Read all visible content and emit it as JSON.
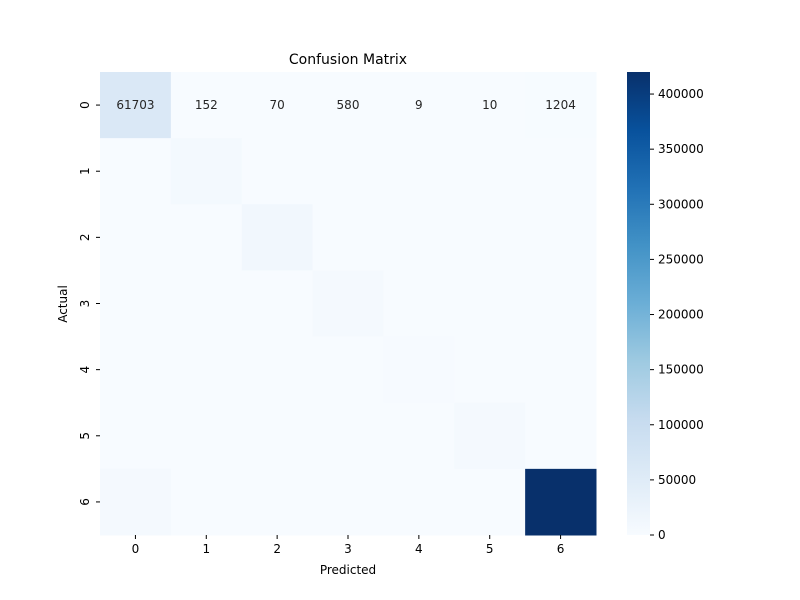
{
  "chart_data": {
    "type": "heatmap",
    "title": "Confusion Matrix",
    "xlabel": "Predicted",
    "ylabel": "Actual",
    "x_categories": [
      "0",
      "1",
      "2",
      "3",
      "4",
      "5",
      "6"
    ],
    "y_categories": [
      "0",
      "1",
      "2",
      "3",
      "4",
      "5",
      "6"
    ],
    "cmap": "Blues",
    "vmin": 0,
    "vmax": 420000,
    "values": [
      [
        61703,
        152,
        70,
        580,
        9,
        10,
        1204
      ],
      [
        null,
        8000,
        null,
        null,
        null,
        null,
        null
      ],
      [
        null,
        null,
        12000,
        null,
        null,
        null,
        null
      ],
      [
        null,
        null,
        null,
        7000,
        null,
        null,
        null
      ],
      [
        null,
        null,
        null,
        null,
        2500,
        null,
        null
      ],
      [
        null,
        null,
        null,
        null,
        null,
        6000,
        null
      ],
      [
        5500,
        null,
        null,
        null,
        null,
        null,
        420000
      ]
    ],
    "annotated_rows": [
      0
    ],
    "colorbar_ticks": [
      0,
      50000,
      100000,
      150000,
      200000,
      250000,
      300000,
      350000,
      400000
    ],
    "colorbar_tick_labels": [
      "0",
      "50000",
      "100000",
      "150000",
      "200000",
      "250000",
      "300000",
      "350000",
      "400000"
    ]
  }
}
